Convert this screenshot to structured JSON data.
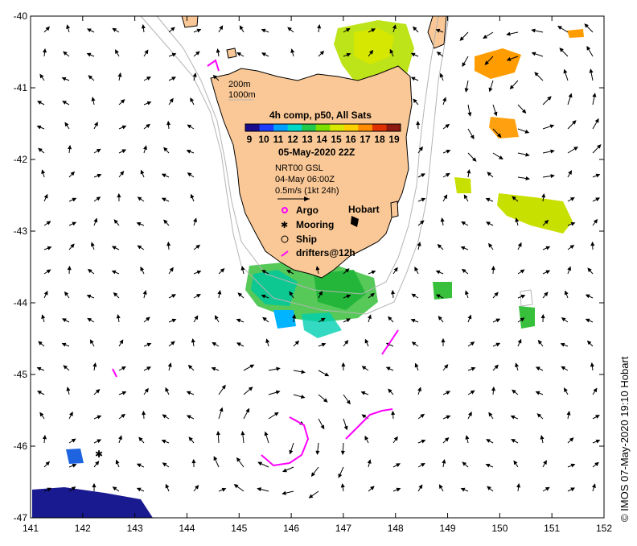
{
  "axes": {
    "x_ticks": [
      "141",
      "142",
      "143",
      "144",
      "145",
      "146",
      "147",
      "148",
      "149",
      "150",
      "151",
      "152"
    ],
    "y_ticks": [
      "-40",
      "-41",
      "-42",
      "-43",
      "-44",
      "-45",
      "-46",
      "-47"
    ],
    "xlim": [
      141,
      152
    ],
    "ylim": [
      -47,
      -40
    ]
  },
  "depth_labels": {
    "shallow": "200m",
    "deep": "1000m"
  },
  "sst_legend": {
    "title": "4h comp, p50, All Sats",
    "scale_labels": [
      "9",
      "10",
      "11",
      "12",
      "13",
      "14",
      "15",
      "16",
      "17",
      "18",
      "19"
    ],
    "date": "05-May-2020 22Z",
    "colors": [
      "#1a0a8c",
      "#1e3cff",
      "#00a0ff",
      "#00d8c8",
      "#22c84a",
      "#7de000",
      "#d8e800",
      "#ffd000",
      "#ff8c00",
      "#e03000",
      "#8c1a10"
    ]
  },
  "current_legend": {
    "product": "NRT00 GSL",
    "date": "04-May 06:00Z",
    "scale": "0.5m/s (1kt 24h)"
  },
  "symbol_legend": {
    "argo": "Argo",
    "mooring": "Mooring",
    "ship": "Ship",
    "drifters": "drifters@12h"
  },
  "places": {
    "city": "Hobart"
  },
  "credit": "© IMOS 07-May-2020 19:10 Hobart",
  "colors": {
    "land": "#fac896",
    "argo": "#ff00ff",
    "drifter": "#ff00ff",
    "isobath": "#b4b4b4"
  }
}
